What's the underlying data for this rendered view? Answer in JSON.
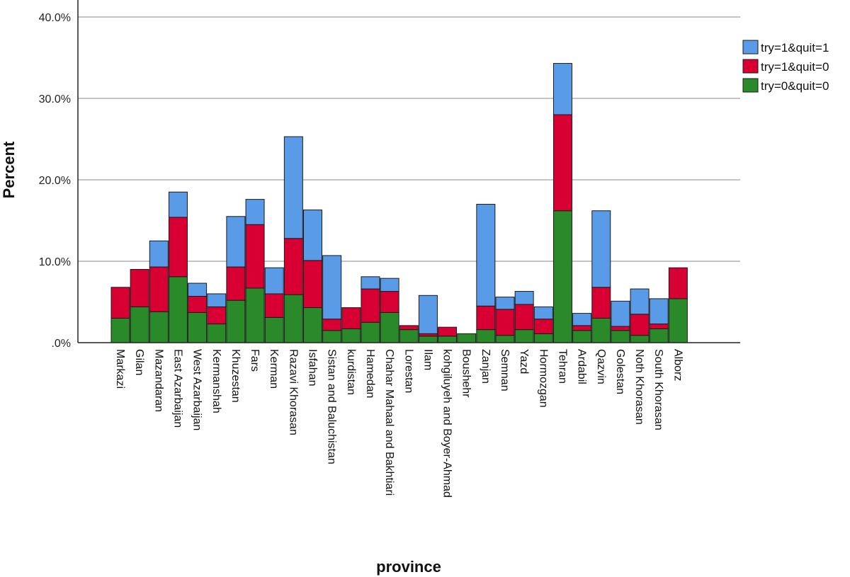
{
  "chart_data": {
    "type": "bar",
    "stacked": true,
    "xlabel": "province",
    "ylabel": "Percent",
    "ylim": [
      0,
      40
    ],
    "yticks": [
      0,
      10,
      20,
      30,
      40
    ],
    "ytick_labels": [
      ".0%",
      "10.0%",
      "20.0%",
      "30.0%",
      "40.0%"
    ],
    "grid": true,
    "legend_position": "top-right",
    "categories": [
      "Markazi",
      "Gilan",
      "Mazandaran",
      "East Azarbaijan",
      "West Azarbaijan",
      "Kermanshah",
      "Khuzestan",
      "Fars",
      "Kerman",
      "Razavi Khorasan",
      "Isfahan",
      "Sistan and Baluchistan",
      "kurdistan",
      "Hamedan",
      "Chahar Mahaal and Bakhtiari",
      "Lorestan",
      "Ilam",
      "kohgiluyeh and Boyer-Ahmad",
      "Boushehr",
      "Zanjan",
      "Semnan",
      "Yazd",
      "Hormozgan",
      "Tehran",
      "Ardabil",
      "Qazvin",
      "Golestan",
      "Noth Khorasan",
      "South Khorasan",
      "Alborz"
    ],
    "series": [
      {
        "name": "try=0&quit=0",
        "color": "#2a8a2a",
        "values": [
          3.0,
          4.4,
          3.8,
          8.1,
          3.7,
          2.3,
          5.2,
          6.7,
          3.1,
          5.9,
          4.3,
          1.5,
          1.7,
          2.5,
          3.7,
          1.6,
          0.8,
          0.8,
          1.1,
          1.6,
          0.9,
          1.6,
          1.1,
          16.2,
          1.5,
          3.0,
          1.5,
          0.9,
          1.7,
          5.4
        ]
      },
      {
        "name": "try=1&quit=0",
        "color": "#d80032",
        "values": [
          3.8,
          4.6,
          5.5,
          7.3,
          2.0,
          2.1,
          4.1,
          7.8,
          2.9,
          6.9,
          5.8,
          1.4,
          2.6,
          4.1,
          2.6,
          0.5,
          0.3,
          1.1,
          0.0,
          2.9,
          3.2,
          3.1,
          1.8,
          11.8,
          0.6,
          3.8,
          0.5,
          2.6,
          0.6,
          3.8
        ]
      },
      {
        "name": "try=1&quit=1",
        "color": "#5a9be8",
        "values": [
          0.0,
          0.0,
          3.2,
          3.1,
          1.6,
          1.6,
          6.2,
          3.1,
          3.2,
          12.5,
          6.2,
          7.8,
          0.0,
          1.5,
          1.6,
          0.0,
          4.7,
          0.0,
          0.0,
          12.5,
          1.5,
          1.6,
          1.5,
          6.3,
          1.5,
          9.4,
          3.1,
          3.1,
          3.1,
          0.0
        ]
      }
    ]
  }
}
